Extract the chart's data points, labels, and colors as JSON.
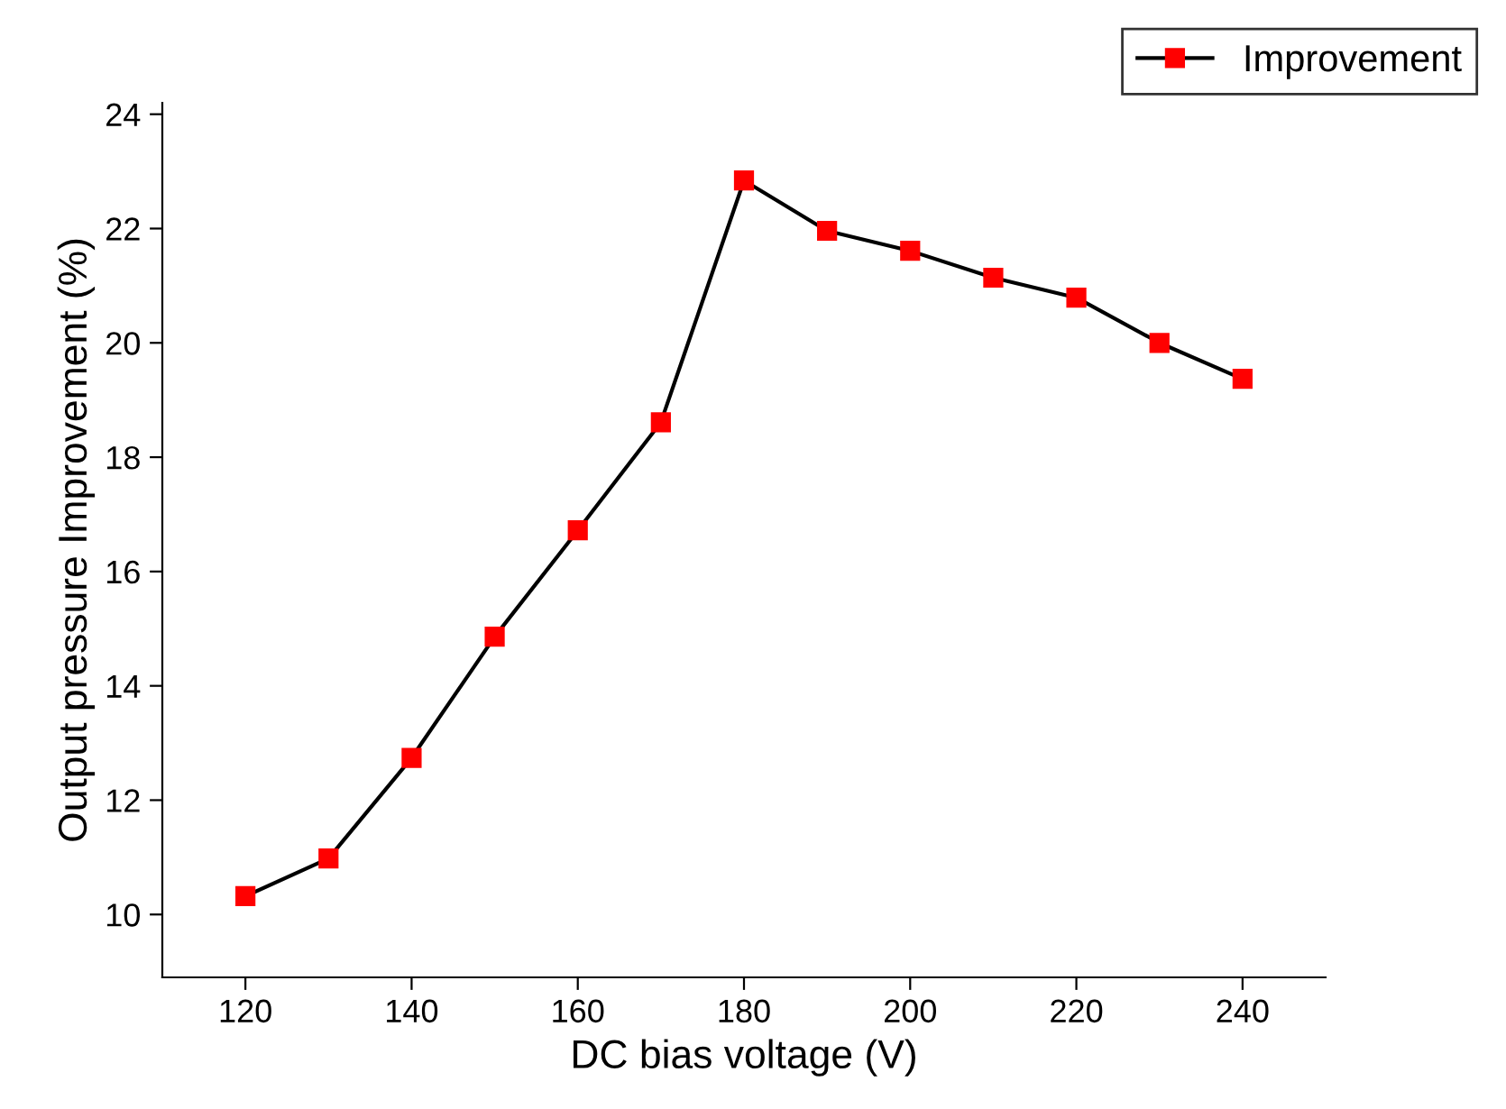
{
  "chart_data": {
    "type": "line",
    "xlabel": "DC bias voltage (V)",
    "ylabel": "Output pressure Improvement (%)",
    "x": [
      120,
      130,
      140,
      150,
      160,
      170,
      180,
      190,
      200,
      210,
      220,
      230,
      240
    ],
    "series": [
      {
        "name": "Improvement",
        "color": "#ff0000",
        "values": [
          10.32,
          10.98,
          12.74,
          14.86,
          16.72,
          18.61,
          22.84,
          21.96,
          21.61,
          21.14,
          20.79,
          20.0,
          19.37
        ]
      }
    ],
    "xlim": [
      110,
      250
    ],
    "ylim": [
      8.9,
      24.2
    ],
    "xticks": [
      120,
      140,
      160,
      180,
      200,
      220,
      240
    ],
    "yticks": [
      10,
      12,
      14,
      16,
      18,
      20,
      22,
      24
    ],
    "marker": "square",
    "line_style": "solid",
    "grid": false,
    "legend": "top right"
  }
}
